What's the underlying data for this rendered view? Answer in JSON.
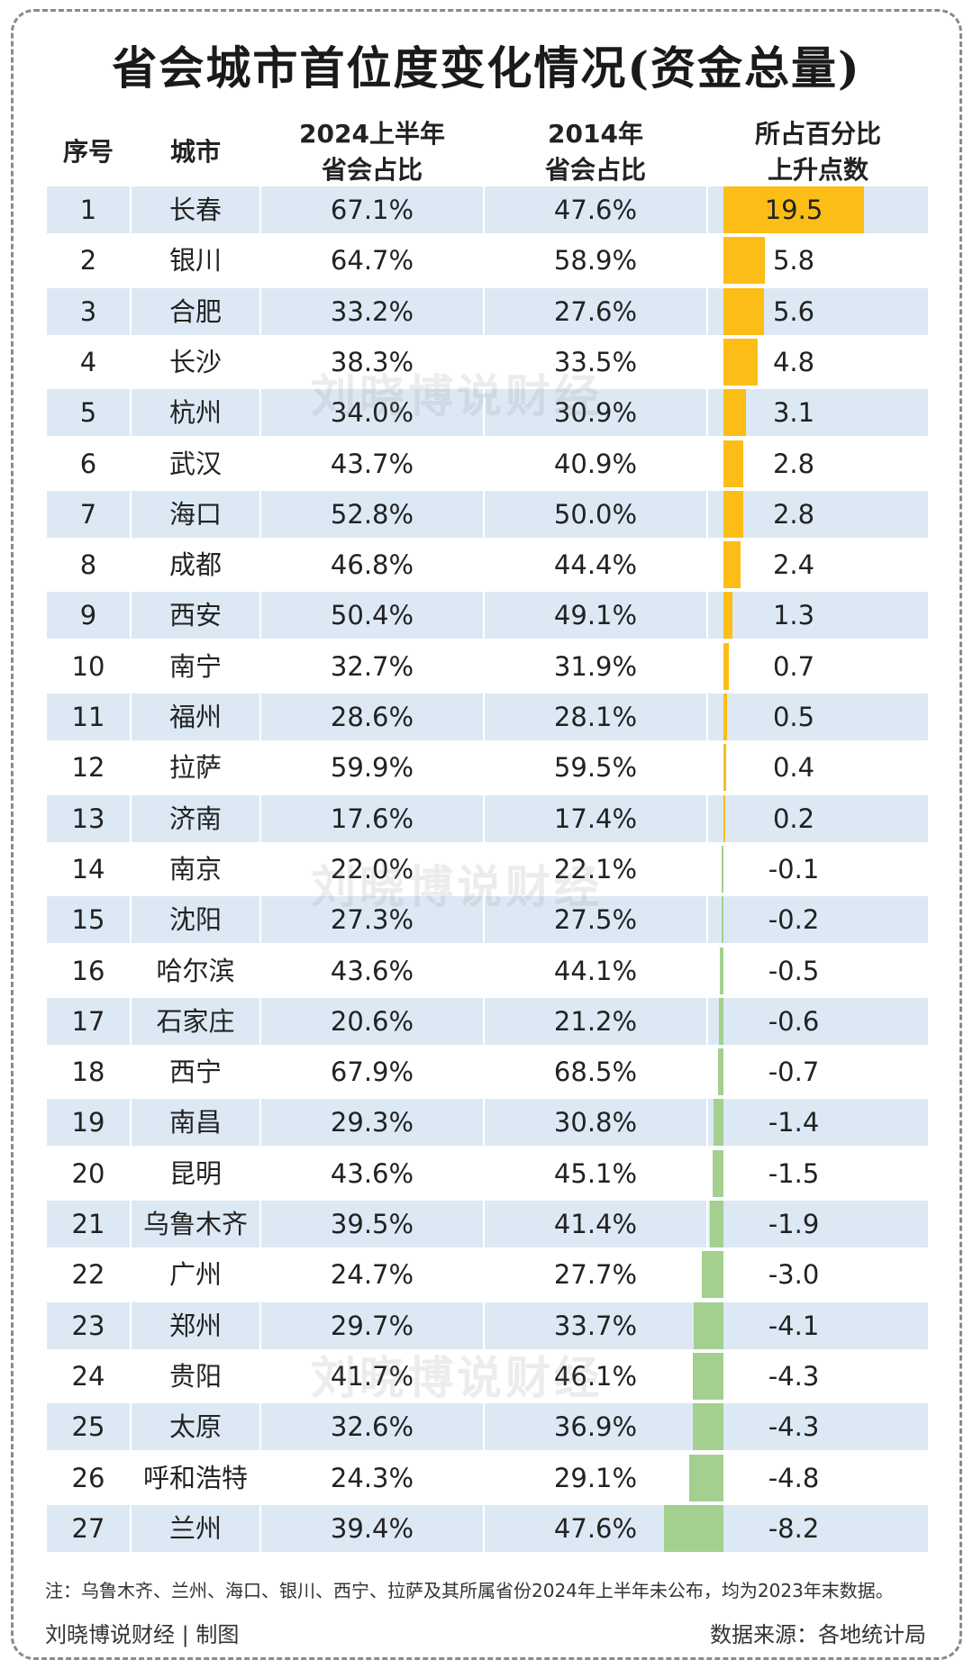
{
  "title": "省会城市首位度变化情况(资金总量)",
  "headers": {
    "rank": "序号",
    "city": "城市",
    "share_2024_line1": "2024上半年",
    "share_2024_line2": "省会占比",
    "share_2014_line1": "2014年",
    "share_2014_line2": "省会占比",
    "change_line1": "所占百分比",
    "change_line2": "上升点数"
  },
  "watermark": "刘晓博说财经",
  "note": "注：乌鲁木齐、兰州、海口、银川、西宁、拉萨及其所属省份2024年上半年未公布，均为2023年末数据。",
  "credit": "刘晓博说财经 | 制图",
  "source": "数据来源：各地统计局",
  "colors": {
    "positive_bar": "#fbbd16",
    "negative_bar": "#a3d08e",
    "row_stripe": "#dce9f5"
  },
  "chart_data": {
    "type": "table",
    "columns": [
      "序号",
      "城市",
      "2024上半年省会占比",
      "2014年省会占比",
      "所占百分比上升点数"
    ],
    "rows": [
      {
        "rank": "1",
        "city": "长春",
        "share_2024": "67.1%",
        "share_2014": "47.6%",
        "change": 19.5,
        "change_label": "19.5"
      },
      {
        "rank": "2",
        "city": "银川",
        "share_2024": "64.7%",
        "share_2014": "58.9%",
        "change": 5.8,
        "change_label": "5.8"
      },
      {
        "rank": "3",
        "city": "合肥",
        "share_2024": "33.2%",
        "share_2014": "27.6%",
        "change": 5.6,
        "change_label": "5.6"
      },
      {
        "rank": "4",
        "city": "长沙",
        "share_2024": "38.3%",
        "share_2014": "33.5%",
        "change": 4.8,
        "change_label": "4.8"
      },
      {
        "rank": "5",
        "city": "杭州",
        "share_2024": "34.0%",
        "share_2014": "30.9%",
        "change": 3.1,
        "change_label": "3.1"
      },
      {
        "rank": "6",
        "city": "武汉",
        "share_2024": "43.7%",
        "share_2014": "40.9%",
        "change": 2.8,
        "change_label": "2.8"
      },
      {
        "rank": "7",
        "city": "海口",
        "share_2024": "52.8%",
        "share_2014": "50.0%",
        "change": 2.8,
        "change_label": "2.8"
      },
      {
        "rank": "8",
        "city": "成都",
        "share_2024": "46.8%",
        "share_2014": "44.4%",
        "change": 2.4,
        "change_label": "2.4"
      },
      {
        "rank": "9",
        "city": "西安",
        "share_2024": "50.4%",
        "share_2014": "49.1%",
        "change": 1.3,
        "change_label": "1.3"
      },
      {
        "rank": "10",
        "city": "南宁",
        "share_2024": "32.7%",
        "share_2014": "31.9%",
        "change": 0.7,
        "change_label": "0.7"
      },
      {
        "rank": "11",
        "city": "福州",
        "share_2024": "28.6%",
        "share_2014": "28.1%",
        "change": 0.5,
        "change_label": "0.5"
      },
      {
        "rank": "12",
        "city": "拉萨",
        "share_2024": "59.9%",
        "share_2014": "59.5%",
        "change": 0.4,
        "change_label": "0.4"
      },
      {
        "rank": "13",
        "city": "济南",
        "share_2024": "17.6%",
        "share_2014": "17.4%",
        "change": 0.2,
        "change_label": "0.2"
      },
      {
        "rank": "14",
        "city": "南京",
        "share_2024": "22.0%",
        "share_2014": "22.1%",
        "change": -0.1,
        "change_label": "-0.1"
      },
      {
        "rank": "15",
        "city": "沈阳",
        "share_2024": "27.3%",
        "share_2014": "27.5%",
        "change": -0.2,
        "change_label": "-0.2"
      },
      {
        "rank": "16",
        "city": "哈尔滨",
        "share_2024": "43.6%",
        "share_2014": "44.1%",
        "change": -0.5,
        "change_label": "-0.5"
      },
      {
        "rank": "17",
        "city": "石家庄",
        "share_2024": "20.6%",
        "share_2014": "21.2%",
        "change": -0.6,
        "change_label": "-0.6"
      },
      {
        "rank": "18",
        "city": "西宁",
        "share_2024": "67.9%",
        "share_2014": "68.5%",
        "change": -0.7,
        "change_label": "-0.7"
      },
      {
        "rank": "19",
        "city": "南昌",
        "share_2024": "29.3%",
        "share_2014": "30.8%",
        "change": -1.4,
        "change_label": "-1.4"
      },
      {
        "rank": "20",
        "city": "昆明",
        "share_2024": "43.6%",
        "share_2014": "45.1%",
        "change": -1.5,
        "change_label": "-1.5"
      },
      {
        "rank": "21",
        "city": "乌鲁木齐",
        "share_2024": "39.5%",
        "share_2014": "41.4%",
        "change": -1.9,
        "change_label": "-1.9"
      },
      {
        "rank": "22",
        "city": "广州",
        "share_2024": "24.7%",
        "share_2014": "27.7%",
        "change": -3.0,
        "change_label": "-3.0"
      },
      {
        "rank": "23",
        "city": "郑州",
        "share_2024": "29.7%",
        "share_2014": "33.7%",
        "change": -4.1,
        "change_label": "-4.1"
      },
      {
        "rank": "24",
        "city": "贵阳",
        "share_2024": "41.7%",
        "share_2014": "46.1%",
        "change": -4.3,
        "change_label": "-4.3"
      },
      {
        "rank": "25",
        "city": "太原",
        "share_2024": "32.6%",
        "share_2014": "36.9%",
        "change": -4.3,
        "change_label": "-4.3"
      },
      {
        "rank": "26",
        "city": "呼和浩特",
        "share_2024": "24.3%",
        "share_2014": "29.1%",
        "change": -4.8,
        "change_label": "-4.8"
      },
      {
        "rank": "27",
        "city": "兰州",
        "share_2024": "39.4%",
        "share_2014": "47.6%",
        "change": -8.2,
        "change_label": "-8.2"
      }
    ]
  }
}
